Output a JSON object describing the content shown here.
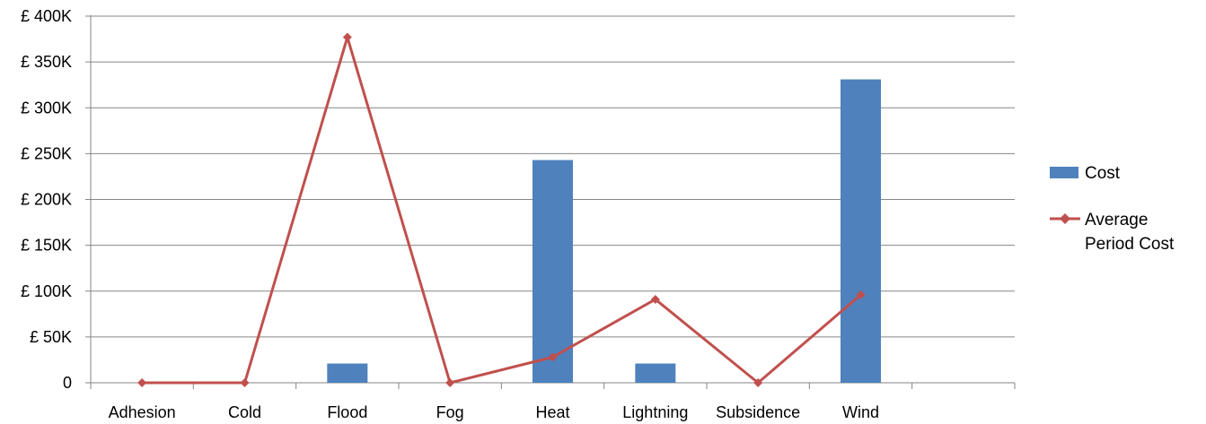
{
  "chart_data": {
    "type": "bar",
    "categories": [
      "Adhesion",
      "Cold",
      "Flood",
      "Fog",
      "Heat",
      "Lightning",
      "Subsidence",
      "Wind"
    ],
    "series": [
      {
        "name": "Cost",
        "type": "bar",
        "color": "#4F81BD",
        "values": [
          0,
          0,
          21000,
          0,
          243000,
          21000,
          0,
          331000
        ]
      },
      {
        "name": "Average Period Cost",
        "type": "line",
        "color": "#C0504D",
        "marker": "diamond",
        "values": [
          0,
          0,
          377000,
          0,
          28000,
          91000,
          0,
          96000
        ]
      }
    ],
    "title": "",
    "xlabel": "",
    "ylabel": "",
    "ylim": [
      0,
      400000
    ],
    "yticks": [
      0,
      50000,
      100000,
      150000,
      200000,
      250000,
      300000,
      350000,
      400000
    ],
    "ytick_labels": [
      "0",
      "£ 50K",
      "£ 100K",
      "£ 150K",
      "£ 200K",
      "£ 250K",
      "£ 300K",
      "£ 350K",
      "£ 400K"
    ],
    "grid": true,
    "legend_position": "right",
    "legend": [
      {
        "label": "Cost",
        "symbol": "bar"
      },
      {
        "label_lines": [
          "Average",
          "Period Cost"
        ],
        "symbol": "line-diamond"
      }
    ]
  }
}
